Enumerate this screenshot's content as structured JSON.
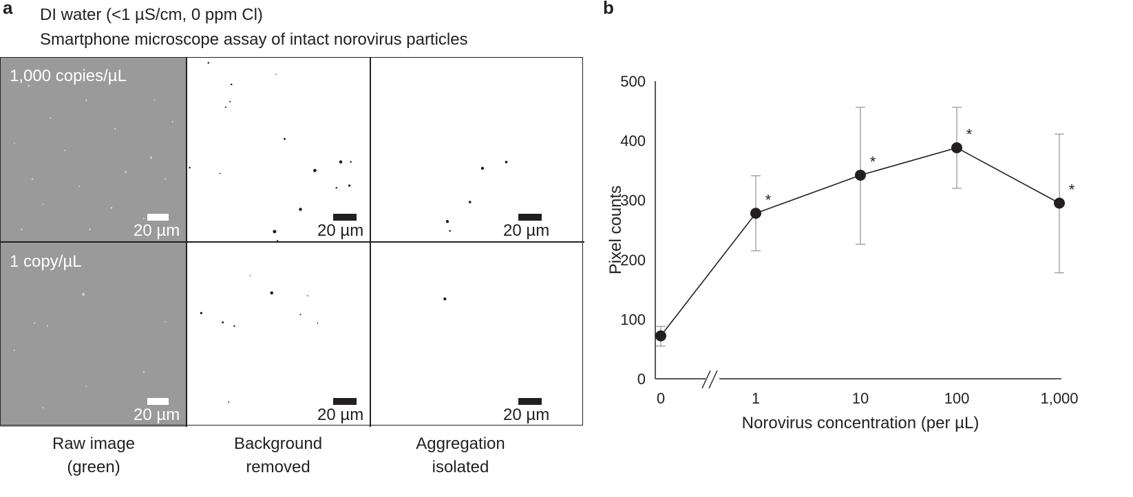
{
  "panel_a": {
    "letter": "a",
    "header_line1": "DI water (<1 µS/cm, 0 ppm Cl)",
    "header_line2": "Smartphone microscope assay of intact norovirus particles",
    "rows": [
      {
        "concentration_label": "1,000 copies/µL"
      },
      {
        "concentration_label": "1 copy/µL"
      }
    ],
    "scale_bar_label": "20 µm",
    "columns": [
      {
        "line1": "Raw image",
        "line2": "(green)"
      },
      {
        "line1": "Background",
        "line2": "removed"
      },
      {
        "line1": "Aggregation",
        "line2": "isolated"
      }
    ]
  },
  "panel_b": {
    "letter": "b",
    "chart_data": {
      "type": "line",
      "title": "",
      "xlabel": "Norovirus concentration (per µL)",
      "ylabel": "Pixel counts",
      "categories": [
        "0",
        "1",
        "10",
        "100",
        "1,000"
      ],
      "values": [
        72,
        278,
        342,
        388,
        295
      ],
      "error_low": [
        55,
        215,
        226,
        320,
        178
      ],
      "error_high": [
        88,
        341,
        456,
        456,
        411
      ],
      "significance": [
        "",
        "*",
        "*",
        "*",
        "*"
      ],
      "ylim": [
        0,
        500
      ],
      "yticks": [
        "0",
        "100",
        "200",
        "300",
        "400",
        "500"
      ],
      "axis_break": "between 0 and 1",
      "grid": false,
      "colors": {
        "marker": "#231f20",
        "line": "#231f20",
        "error_bar": "#9a9a9a"
      }
    }
  }
}
